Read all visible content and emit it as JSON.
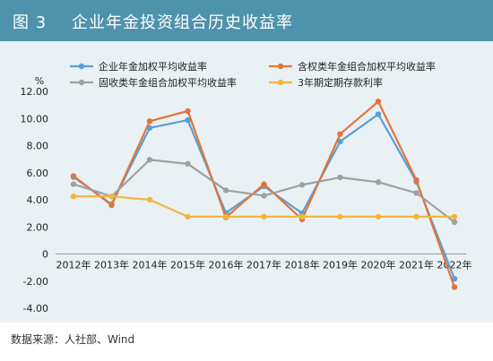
{
  "figure": {
    "number": "图 3",
    "title": "企业年金投资组合历史收益率"
  },
  "source": "数据来源：人社部、Wind",
  "colors": {
    "header": "#4e93ab",
    "background": "#eaf1f4"
  },
  "chart_data": {
    "type": "line",
    "ylabel": "%",
    "ylim": [
      -4,
      12
    ],
    "yticks": [
      -4,
      -2,
      0,
      2,
      4,
      6,
      8,
      10,
      12
    ],
    "ytick_labels": [
      "-4.00",
      "-2.00",
      "0",
      "2.00",
      "4.00",
      "6.00",
      "8.00",
      "10.00",
      "12.00"
    ],
    "categories": [
      "2012年",
      "2013年",
      "2014年",
      "2015年",
      "2016年",
      "2017年",
      "2018年",
      "2019年",
      "2020年",
      "2021年",
      "2022年"
    ],
    "grid": false,
    "legend": "top",
    "series": [
      {
        "name": "企业年金加权平均收益率",
        "color": "#5a9fd4",
        "values": [
          5.68,
          3.67,
          9.3,
          9.88,
          3.03,
          5.0,
          3.01,
          8.3,
          10.31,
          5.33,
          -1.83
        ]
      },
      {
        "name": "含权类年金组合加权平均收益率",
        "color": "#e2743b",
        "values": [
          5.75,
          3.6,
          9.8,
          10.55,
          2.7,
          5.15,
          2.55,
          8.85,
          11.25,
          5.45,
          -2.45
        ]
      },
      {
        "name": "固收类年金组合加权平均收益率",
        "color": "#a0a0a0",
        "values": [
          5.15,
          4.25,
          6.95,
          6.65,
          4.7,
          4.3,
          5.1,
          5.65,
          5.3,
          4.5,
          2.35
        ]
      },
      {
        "name": "3年期定期存款利率",
        "color": "#f3b63a",
        "values": [
          4.25,
          4.25,
          4.0,
          2.75,
          2.75,
          2.75,
          2.75,
          2.75,
          2.75,
          2.75,
          2.75
        ]
      }
    ]
  }
}
